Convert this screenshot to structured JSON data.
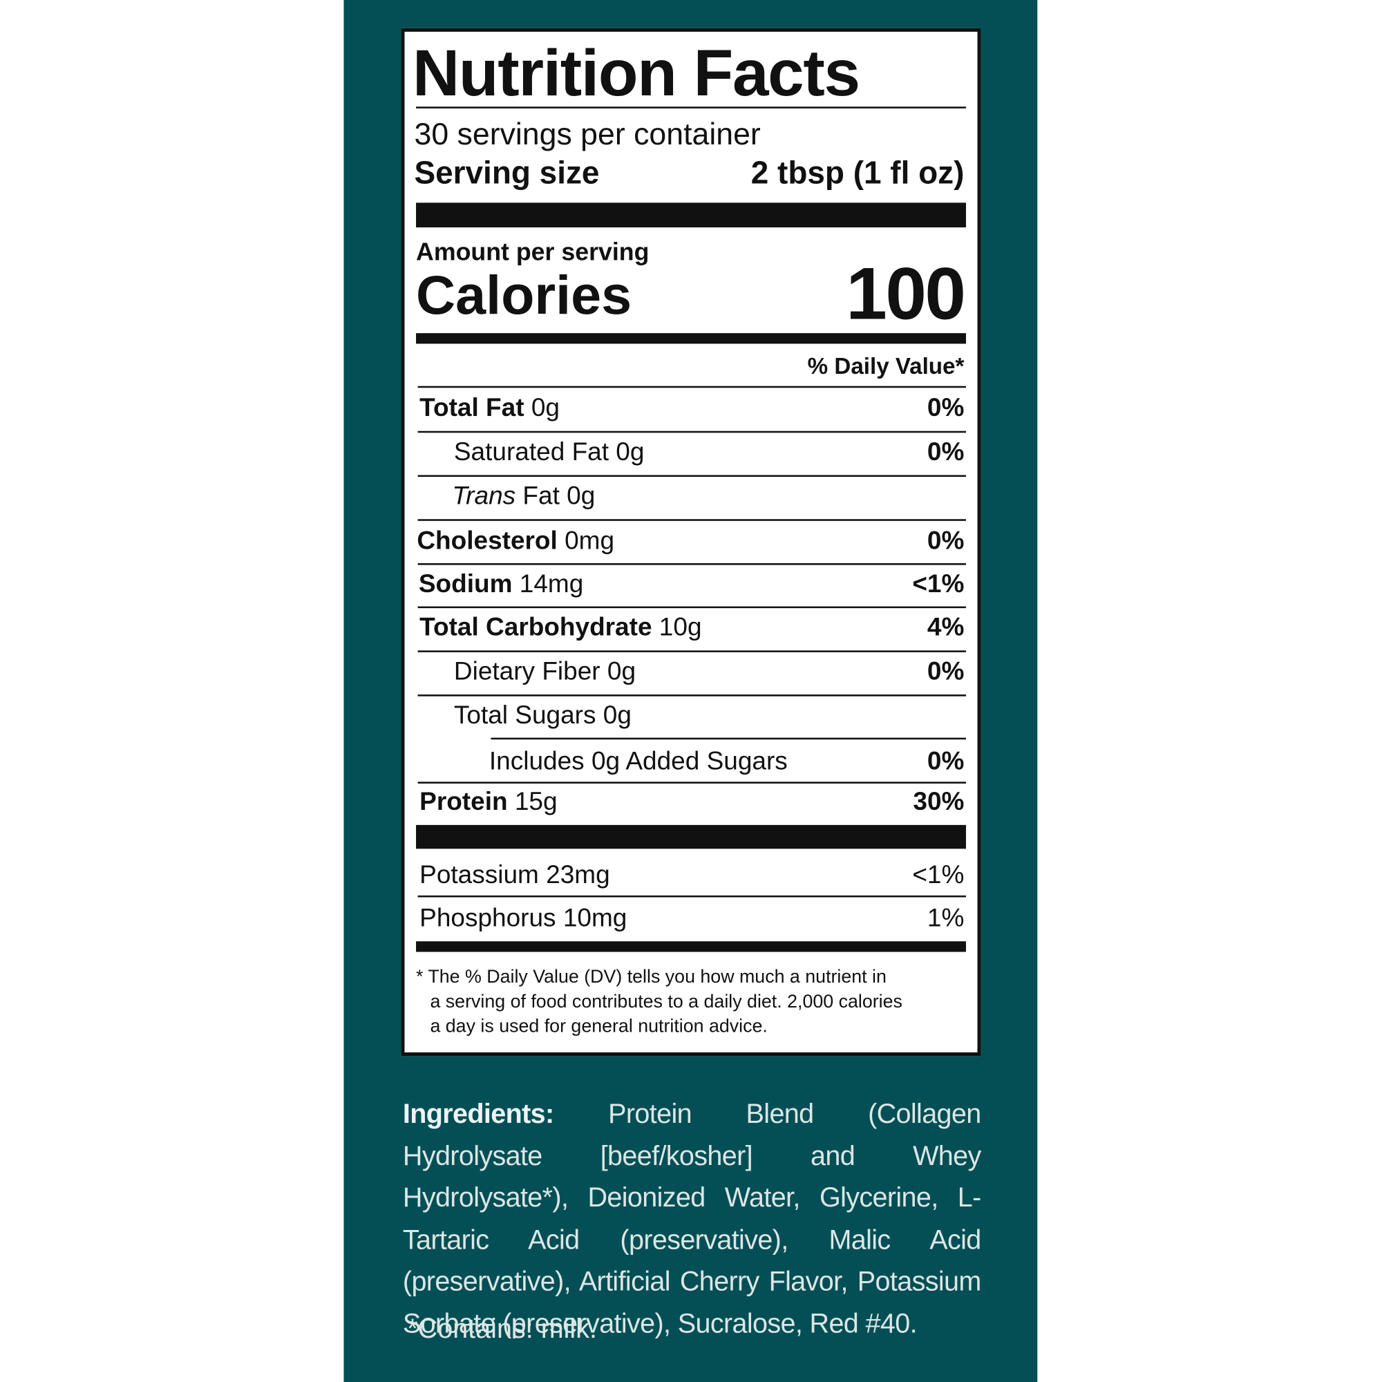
{
  "label": {
    "title": "Nutrition Facts",
    "servings": "30 servings per container",
    "serving_size_label": "Serving size",
    "serving_size_value": "2 tbsp (1 fl oz)",
    "amount_per_serving": "Amount per serving",
    "calories_label": "Calories",
    "calories_value": "100",
    "daily_value_header": "% Daily Value*",
    "rows": [
      {
        "name": "Total Fat",
        "amount": "0g",
        "dv": "0%"
      },
      {
        "name": "Saturated Fat",
        "amount": "0g",
        "dv": "0%"
      },
      {
        "name_italic": "Trans",
        "name": "Fat",
        "amount": "0g"
      },
      {
        "name": "Cholesterol",
        "amount": "0mg",
        "dv": "0%"
      },
      {
        "name": "Sodium",
        "amount": "14mg",
        "dv": "<1%"
      },
      {
        "name": "Total Carbohydrate",
        "amount": "10g",
        "dv": "4%"
      },
      {
        "name": "Dietary Fiber",
        "amount": "0g",
        "dv": "0%"
      },
      {
        "name": "Total Sugars",
        "amount": "0g"
      },
      {
        "name": "Includes 0g Added Sugars",
        "dv": "0%"
      },
      {
        "name": "Protein",
        "amount": "15g",
        "dv": "30%"
      },
      {
        "name": "Potassium",
        "amount": "23mg",
        "dv": "<1%"
      },
      {
        "name": "Phosphorus",
        "amount": "10mg",
        "dv": "1%"
      }
    ],
    "footnote": [
      "* The % Daily Value (DV) tells you how much a nutrient in",
      "a serving of food contributes to a daily diet. 2,000 calories",
      "a day is used for general nutrition advice."
    ]
  },
  "ingredients": {
    "label": "Ingredients:",
    "text": "Protein Blend (Collagen Hydrolysate [beef/kosher] and Whey Hydrolysate*), Deionized Water, Glycerine, L-Tartaric Acid (preservative), Malic Acid (preservative), Artificial Cherry Flavor, Potassium Sorbate (preservative), Sucralose, Red #40.",
    "allergens": "*Contains: milk."
  }
}
